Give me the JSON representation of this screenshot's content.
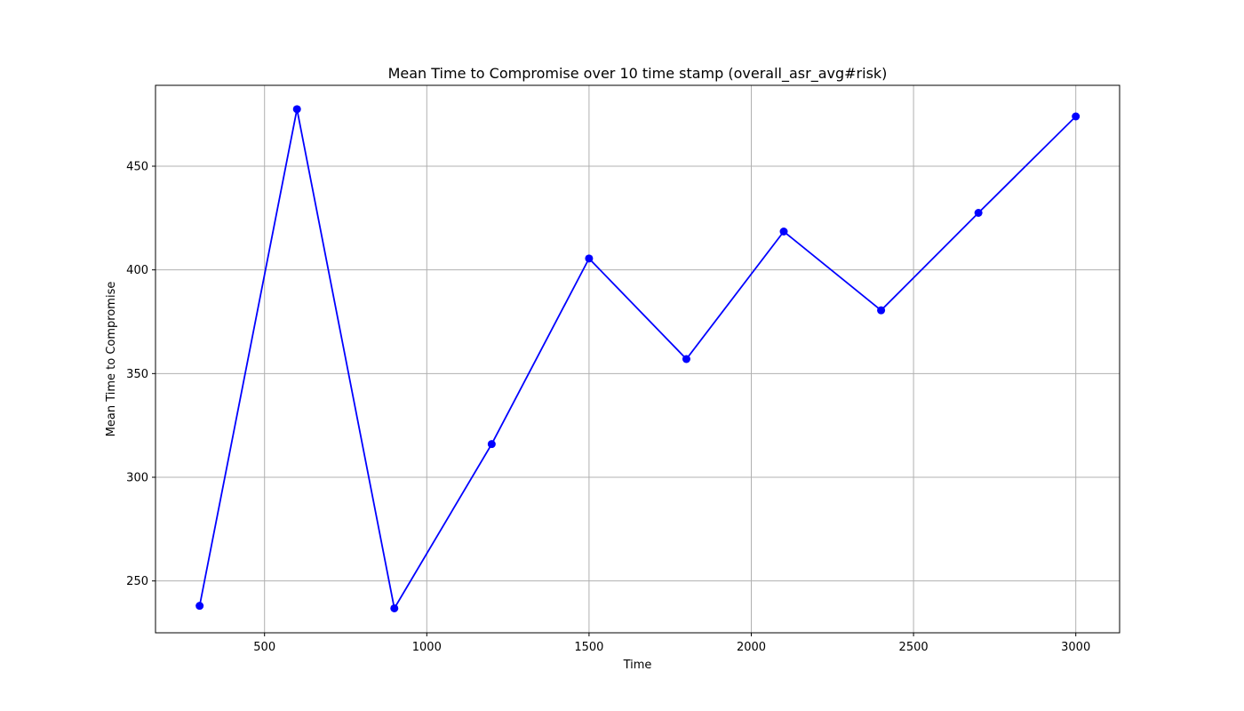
{
  "chart_data": {
    "type": "line",
    "title": "Mean Time to Compromise over 10 time stamp (overall_asr_avg#risk)",
    "xlabel": "Time",
    "ylabel": "Mean Time to Compromise",
    "x": [
      300,
      600,
      900,
      1200,
      1500,
      1800,
      2100,
      2400,
      2700,
      3000
    ],
    "series": [
      {
        "values": [
          238,
          477.5,
          236.8,
          316,
          405.5,
          357,
          418.5,
          380.5,
          427.5,
          474
        ],
        "color": "#0000ff",
        "marker": "circle"
      }
    ],
    "xlim": [
      164,
      3135
    ],
    "ylim": [
      225,
      489
    ],
    "xticks": [
      500,
      1000,
      1500,
      2000,
      2500,
      3000
    ],
    "yticks": [
      250,
      300,
      350,
      400,
      450
    ],
    "grid": true,
    "grid_color": "#b0b0b0"
  }
}
